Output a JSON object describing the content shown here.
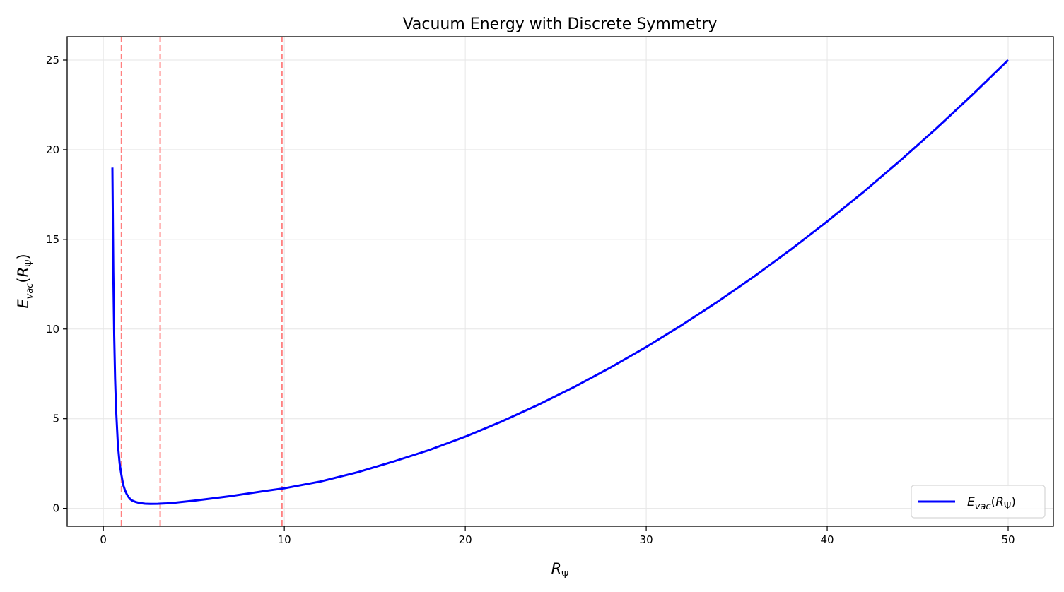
{
  "chart_data": {
    "type": "line",
    "title": "Vacuum Energy with Discrete Symmetry",
    "xlabel": {
      "base": "R",
      "sub": "Ψ"
    },
    "ylabel": {
      "base": "E",
      "sub": "vac",
      "open": "(",
      "arg_base": "R",
      "arg_sub": "Ψ",
      "close": ")"
    },
    "xlim": [
      -2,
      52.5
    ],
    "ylim": [
      -1,
      26.3
    ],
    "xticks": [
      0,
      10,
      20,
      30,
      40,
      50
    ],
    "xtick_labels": [
      "0",
      "10",
      "20",
      "30",
      "40",
      "50"
    ],
    "yticks": [
      0,
      5,
      10,
      15,
      20,
      25
    ],
    "ytick_labels": [
      "0",
      "5",
      "10",
      "15",
      "20",
      "25"
    ],
    "grid": true,
    "legend_position": "lower-right",
    "series": [
      {
        "name": {
          "base": "E",
          "sub": "vac",
          "open": "(",
          "arg_base": "R",
          "arg_sub": "Ψ",
          "close": ")"
        },
        "color": "#0000ff",
        "x": [
          0.5,
          0.55,
          0.6,
          0.65,
          0.7,
          0.8,
          0.9,
          1.0,
          1.1,
          1.2,
          1.3,
          1.4,
          1.5,
          1.6,
          1.8,
          2.0,
          2.3,
          2.6,
          3.0,
          3.5,
          4,
          5,
          6,
          7,
          8,
          9,
          10,
          12,
          14,
          16,
          18,
          20,
          22,
          24,
          26,
          28,
          30,
          32,
          34,
          36,
          38,
          40,
          42,
          44,
          46,
          48,
          50
        ],
        "y": [
          19.0,
          13.2,
          9.6,
          7.2,
          5.6,
          3.6,
          2.5,
          1.85,
          1.3,
          1.0,
          0.78,
          0.62,
          0.5,
          0.43,
          0.35,
          0.3,
          0.26,
          0.25,
          0.255,
          0.28,
          0.32,
          0.43,
          0.55,
          0.68,
          0.83,
          0.98,
          1.12,
          1.5,
          2.0,
          2.6,
          3.25,
          4.0,
          4.84,
          5.76,
          6.76,
          7.84,
          9.0,
          10.24,
          11.56,
          12.96,
          14.44,
          16.0,
          17.64,
          19.36,
          21.16,
          23.04,
          25.0
        ]
      }
    ],
    "vlines": {
      "x": [
        1.0,
        3.14,
        9.87
      ],
      "color": "#ff8080",
      "style": "dashed"
    },
    "colors": {
      "grid": "#e6e6e6",
      "axes": "#000000"
    }
  }
}
